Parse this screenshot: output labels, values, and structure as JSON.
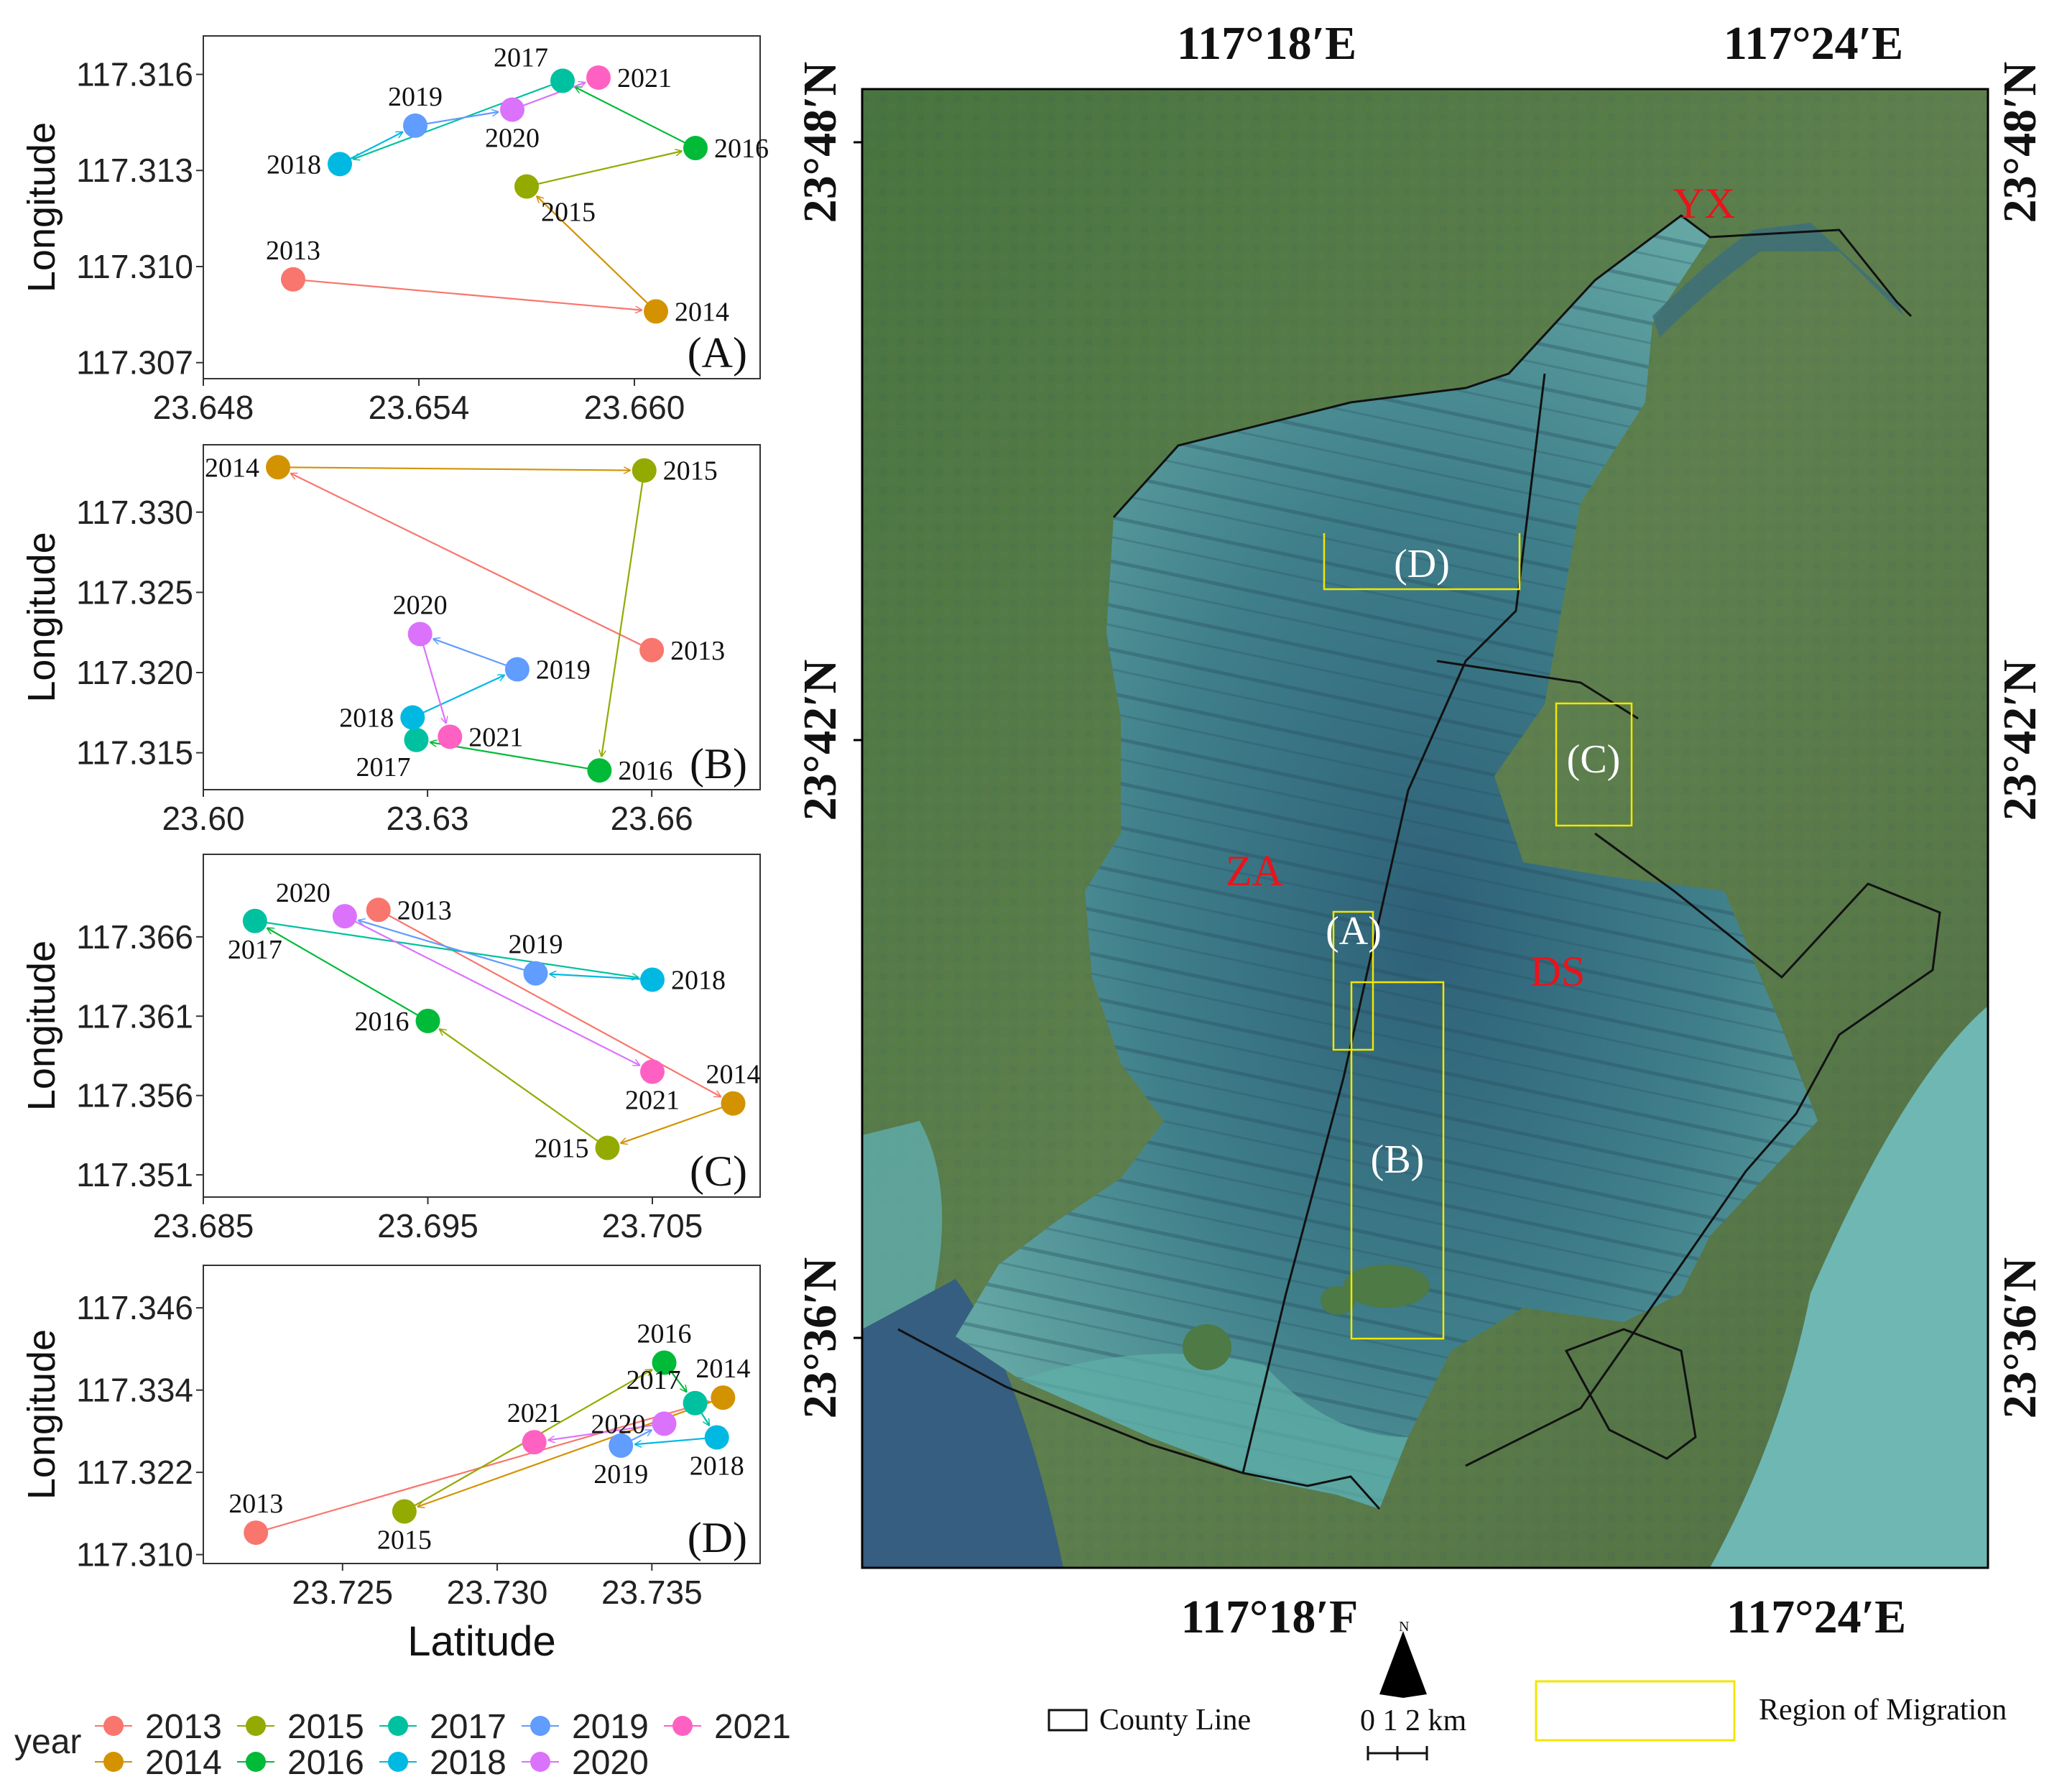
{
  "chart_data": [
    {
      "type": "scatter",
      "panel_label": "(A)",
      "xlim": [
        23.648,
        23.6635
      ],
      "ylim": [
        117.3065,
        117.3172
      ],
      "xticks": [
        "23.648",
        "23.654",
        "23.660"
      ],
      "yticks": [
        "117.307",
        "117.310",
        "117.313",
        "117.316"
      ],
      "xlabel": "",
      "ylabel": "Longitude",
      "points": [
        {
          "year": "2013",
          "x": 23.6505,
          "y": 117.3096,
          "label_pos": "above"
        },
        {
          "year": "2014",
          "x": 23.6606,
          "y": 117.3086,
          "label_pos": "right"
        },
        {
          "year": "2015",
          "x": 23.657,
          "y": 117.3125,
          "label_pos": "below-right"
        },
        {
          "year": "2016",
          "x": 23.6617,
          "y": 117.3137,
          "label_pos": "right"
        },
        {
          "year": "2017",
          "x": 23.658,
          "y": 117.3158,
          "label_pos": "above-left"
        },
        {
          "year": "2018",
          "x": 23.6518,
          "y": 117.3132,
          "label_pos": "left"
        },
        {
          "year": "2019",
          "x": 23.6539,
          "y": 117.3144,
          "label_pos": "above"
        },
        {
          "year": "2020",
          "x": 23.6566,
          "y": 117.3149,
          "label_pos": "below"
        },
        {
          "year": "2021",
          "x": 23.659,
          "y": 117.3159,
          "label_pos": "right"
        }
      ]
    },
    {
      "type": "scatter",
      "panel_label": "(B)",
      "xlim": [
        23.6,
        23.6745
      ],
      "ylim": [
        117.3127,
        117.3342
      ],
      "xticks": [
        "23.60",
        "23.63",
        "23.66"
      ],
      "yticks": [
        "117.315",
        "117.320",
        "117.325",
        "117.330"
      ],
      "xlabel": "",
      "ylabel": "Longitude",
      "points": [
        {
          "year": "2013",
          "x": 23.66,
          "y": 117.3214,
          "label_pos": "right"
        },
        {
          "year": "2014",
          "x": 23.61,
          "y": 117.3328,
          "label_pos": "left"
        },
        {
          "year": "2015",
          "x": 23.659,
          "y": 117.3326,
          "label_pos": "right"
        },
        {
          "year": "2016",
          "x": 23.653,
          "y": 117.3139,
          "label_pos": "right"
        },
        {
          "year": "2017",
          "x": 23.6285,
          "y": 117.3158,
          "label_pos": "below-left"
        },
        {
          "year": "2018",
          "x": 23.628,
          "y": 117.3172,
          "label_pos": "left"
        },
        {
          "year": "2019",
          "x": 23.642,
          "y": 117.3202,
          "label_pos": "right"
        },
        {
          "year": "2020",
          "x": 23.629,
          "y": 117.3224,
          "label_pos": "above"
        },
        {
          "year": "2021",
          "x": 23.633,
          "y": 117.316,
          "label_pos": "right"
        }
      ]
    },
    {
      "type": "scatter",
      "panel_label": "(C)",
      "xlim": [
        23.685,
        23.7098
      ],
      "ylim": [
        117.3496,
        117.3712
      ],
      "xticks": [
        "23.685",
        "23.695",
        "23.705"
      ],
      "yticks": [
        "117.351",
        "117.356",
        "117.361",
        "117.366"
      ],
      "xlabel": "",
      "ylabel": "Longitude",
      "points": [
        {
          "year": "2013",
          "x": 23.6928,
          "y": 117.3677,
          "label_pos": "right"
        },
        {
          "year": "2014",
          "x": 23.7086,
          "y": 117.3555,
          "label_pos": "above"
        },
        {
          "year": "2015",
          "x": 23.703,
          "y": 117.3527,
          "label_pos": "left"
        },
        {
          "year": "2016",
          "x": 23.695,
          "y": 117.3607,
          "label_pos": "left"
        },
        {
          "year": "2017",
          "x": 23.6873,
          "y": 117.367,
          "label_pos": "below"
        },
        {
          "year": "2018",
          "x": 23.705,
          "y": 117.3633,
          "label_pos": "right"
        },
        {
          "year": "2019",
          "x": 23.6998,
          "y": 117.3637,
          "label_pos": "above"
        },
        {
          "year": "2020",
          "x": 23.6913,
          "y": 117.3673,
          "label_pos": "above-left"
        },
        {
          "year": "2021",
          "x": 23.705,
          "y": 117.3575,
          "label_pos": "below"
        }
      ]
    },
    {
      "type": "scatter",
      "panel_label": "(D)",
      "xlim": [
        23.7205,
        23.7385
      ],
      "ylim": [
        117.3087,
        117.3522
      ],
      "xticks": [
        "23.725",
        "23.730",
        "23.735"
      ],
      "yticks": [
        "117.310",
        "117.322",
        "117.334",
        "117.346"
      ],
      "xlabel": "Latitude",
      "ylabel": "Longitude",
      "points": [
        {
          "year": "2013",
          "x": 23.7222,
          "y": 117.3132,
          "label_pos": "above"
        },
        {
          "year": "2014",
          "x": 23.7373,
          "y": 117.3329,
          "label_pos": "above"
        },
        {
          "year": "2015",
          "x": 23.727,
          "y": 117.3163,
          "label_pos": "below"
        },
        {
          "year": "2016",
          "x": 23.7354,
          "y": 117.338,
          "label_pos": "above"
        },
        {
          "year": "2017",
          "x": 23.7364,
          "y": 117.3321,
          "label_pos": "above-left"
        },
        {
          "year": "2018",
          "x": 23.7371,
          "y": 117.3271,
          "label_pos": "below"
        },
        {
          "year": "2019",
          "x": 23.734,
          "y": 117.3259,
          "label_pos": "below"
        },
        {
          "year": "2020",
          "x": 23.7354,
          "y": 117.3291,
          "label_pos": "left"
        },
        {
          "year": "2021",
          "x": 23.7312,
          "y": 117.3264,
          "label_pos": "above"
        }
      ]
    }
  ],
  "legend": {
    "title": "year",
    "items": [
      {
        "label": "2013",
        "color": "#F8766D"
      },
      {
        "label": "2014",
        "color": "#D39200"
      },
      {
        "label": "2015",
        "color": "#93AA00"
      },
      {
        "label": "2016",
        "color": "#00BA38"
      },
      {
        "label": "2017",
        "color": "#00C19F"
      },
      {
        "label": "2018",
        "color": "#00B9E3"
      },
      {
        "label": "2019",
        "color": "#619CFF"
      },
      {
        "label": "2020",
        "color": "#DB72FB"
      },
      {
        "label": "2021",
        "color": "#FF61C3"
      }
    ]
  },
  "map": {
    "top_labels": [
      "117°18′E",
      "117°24′E"
    ],
    "bottom_labels": [
      "117°18′F",
      "117°24′E"
    ],
    "left_labels": [
      "23°48′N",
      "23°42′N",
      "23°36′N"
    ],
    "right_labels": [
      "23°48′N",
      "23°42′N",
      "23°36′N"
    ],
    "region_labels": [
      "YX",
      "ZA",
      "DS"
    ],
    "box_labels": [
      "(D)",
      "(C)",
      "(A)",
      "(B)"
    ],
    "colors": {
      "region_text": "#E8141B",
      "box": "#F2E600",
      "county_line": "#111111"
    }
  },
  "map_legend": {
    "county_line": "County Line",
    "scale_text": "0 1 2 km",
    "north_letter": "N",
    "migration": "Region of Migration"
  }
}
